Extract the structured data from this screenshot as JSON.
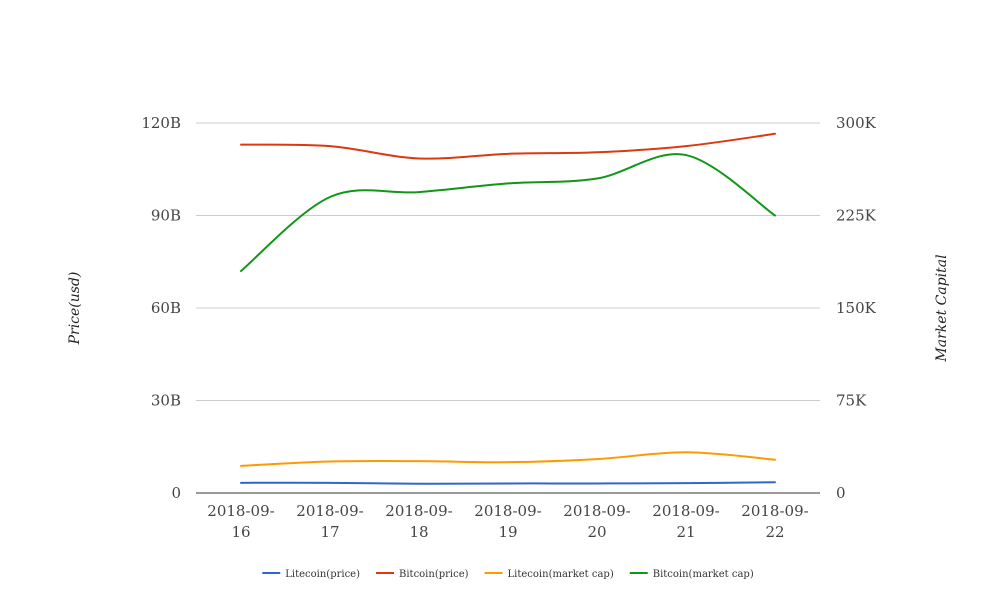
{
  "chart_data": {
    "type": "line",
    "categories": [
      "2018-09-16",
      "2018-09-17",
      "2018-09-18",
      "2018-09-19",
      "2018-09-20",
      "2018-09-21",
      "2018-09-22"
    ],
    "category_lines": [
      [
        "2018-09-",
        "16"
      ],
      [
        "2018-09-",
        "17"
      ],
      [
        "2018-09-",
        "18"
      ],
      [
        "2018-09-",
        "19"
      ],
      [
        "2018-09-",
        "20"
      ],
      [
        "2018-09-",
        "21"
      ],
      [
        "2018-09-",
        "22"
      ]
    ],
    "ylabel_left": "Price(usd)",
    "ylabel_right": "Market Capital",
    "left_axis": {
      "ylim": [
        0,
        120000000000
      ],
      "ticks": [
        0,
        30000000000,
        60000000000,
        90000000000,
        120000000000
      ],
      "tick_labels": [
        "0",
        "30B",
        "60B",
        "90B",
        "120B"
      ]
    },
    "right_axis": {
      "ylim": [
        0,
        300000
      ],
      "ticks": [
        0,
        75000,
        150000,
        225000,
        300000
      ],
      "tick_labels": [
        "0",
        "75K",
        "150K",
        "225K",
        "300K"
      ]
    },
    "grid": true,
    "legend_position": "bottom",
    "series": [
      {
        "name": "Litecoin(price)",
        "axis": "left",
        "color": "#3366cc",
        "values": [
          3300000000,
          3300000000,
          3000000000,
          3100000000,
          3100000000,
          3200000000,
          3500000000
        ]
      },
      {
        "name": "Bitcoin(price)",
        "axis": "left",
        "color": "#dc3912",
        "values": [
          113000000000,
          112500000000,
          108500000000,
          110000000000,
          110500000000,
          112500000000,
          116500000000
        ]
      },
      {
        "name": "Litecoin(market cap)",
        "axis": "right",
        "color": "#ff9900",
        "values": [
          22000,
          25500,
          25800,
          25000,
          27500,
          33000,
          27000
        ]
      },
      {
        "name": "Bitcoin(market cap)",
        "axis": "right",
        "color": "#109618",
        "values": [
          180000,
          240000,
          244000,
          251000,
          255000,
          274000,
          225000
        ]
      }
    ]
  }
}
